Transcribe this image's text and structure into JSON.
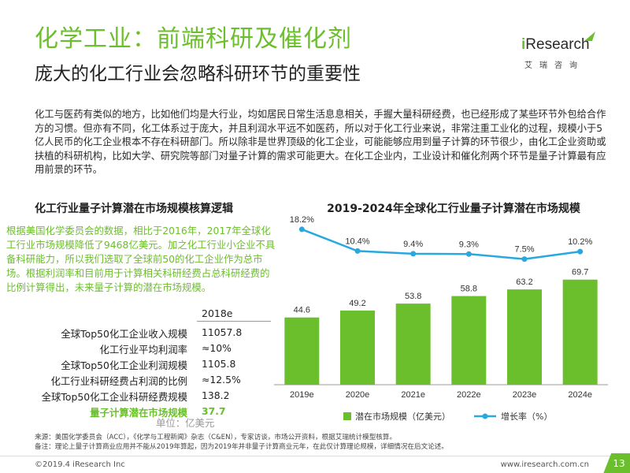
{
  "header": {
    "title": "化学工业：前端科研及催化剂",
    "subtitle": "庞大的化工行业会忽略科研环节的重要性"
  },
  "logo": {
    "brand_i": "i",
    "brand_rest": "Research",
    "sub": "艾瑞咨询"
  },
  "intro": "化工与医药有类似的地方，比如他们均是大行业，均如居民日常生活息息相关，手握大量科研经费，也已经形成了某些环节外包给合作方的习惯。但亦有不同，化工体系过于庞大，并且利润水平远不如医药，所以对于化工行业来说，非常注重工业化的过程，规模小于5亿人民币的化工企业根本不存在科研部门。所以除非是世界顶级的化工企业，可能能够应用到量子计算的环节很少，由化工企业资助或扶植的科研机构，比如大学、研究院等部门对量子计算的需求可能更大。在化工企业内，工业设计和催化剂两个环节是量子计算最有应用前景的环节。",
  "left": {
    "heading": "化工行业量子计算潜在市场规模核算逻辑",
    "text": "根据美国化学委员会的数据，相比于2016年，2017年全球化工行业市场规模降低了9468亿美元。加之化工行业小企业不具备科研能力，所以我们选取了全球前50的化工企业作为总市场。根据利润率和目前用于计算相关科研经费占总科研经费的比例计算得出，未来量子计算的潜在市场规模。",
    "table": {
      "year": "2018e",
      "rows": [
        {
          "label": "全球Top50化工企业收入规模",
          "value": "11057.8",
          "highlight": false
        },
        {
          "label": "化工行业平均利润率",
          "value": "≈10%",
          "highlight": false
        },
        {
          "label": "全球Top50化工企业利润规模",
          "value": "1105.8",
          "highlight": false
        },
        {
          "label": "化工行业科研经费占利润的比例",
          "value": "≈12.5%",
          "highlight": false
        },
        {
          "label": "全球Top50化工企业科研经费规模",
          "value": "138.2",
          "highlight": false
        },
        {
          "label": "量子计算潜在市场规模",
          "value": "37.7",
          "highlight": true
        }
      ],
      "unit": "单位：亿美元"
    }
  },
  "chart_data": {
    "type": "bar",
    "title": "2019-2024年全球化工行业量子计算潜在市场规模",
    "categories": [
      "2019e",
      "2020e",
      "2021e",
      "2022e",
      "2023e",
      "2024e"
    ],
    "series": [
      {
        "name": "潜在市场规模（亿美元）",
        "type": "bar",
        "values": [
          44.6,
          49.2,
          53.8,
          58.8,
          63.2,
          69.7
        ],
        "labels": [
          "44.6",
          "49.2",
          "53.8",
          "58.8",
          "63.2",
          "69.7"
        ]
      },
      {
        "name": "增长率（%）",
        "type": "line",
        "values": [
          18.2,
          10.4,
          9.4,
          9.3,
          7.5,
          10.2
        ],
        "labels": [
          "18.2%",
          "10.4%",
          "9.4%",
          "9.3%",
          "7.5%",
          "10.2%"
        ]
      }
    ],
    "ylim_bar": [
      0,
      80
    ],
    "ylim_line": [
      0,
      20
    ],
    "legend_position": "bottom",
    "grid": false,
    "colors": {
      "bar": "#6cbf2c",
      "line": "#29a8e0"
    }
  },
  "source": {
    "line1": "来源：美国化学委员会（ACC），《化学与工程新闻》杂志（C&EN），专家访谈，市场公开资料，根据艾瑞统计模型核算。",
    "line2": "备注：理论上量子计算商业应用并不能从2019年算起，因为2019年并非量子计算商业元年，在此仅计算理论规模，详细情况在后文论述。"
  },
  "footer": {
    "copyright": "©2019.4 iResearch Inc",
    "url": "www.iresearch.com.cn",
    "page": "13"
  }
}
